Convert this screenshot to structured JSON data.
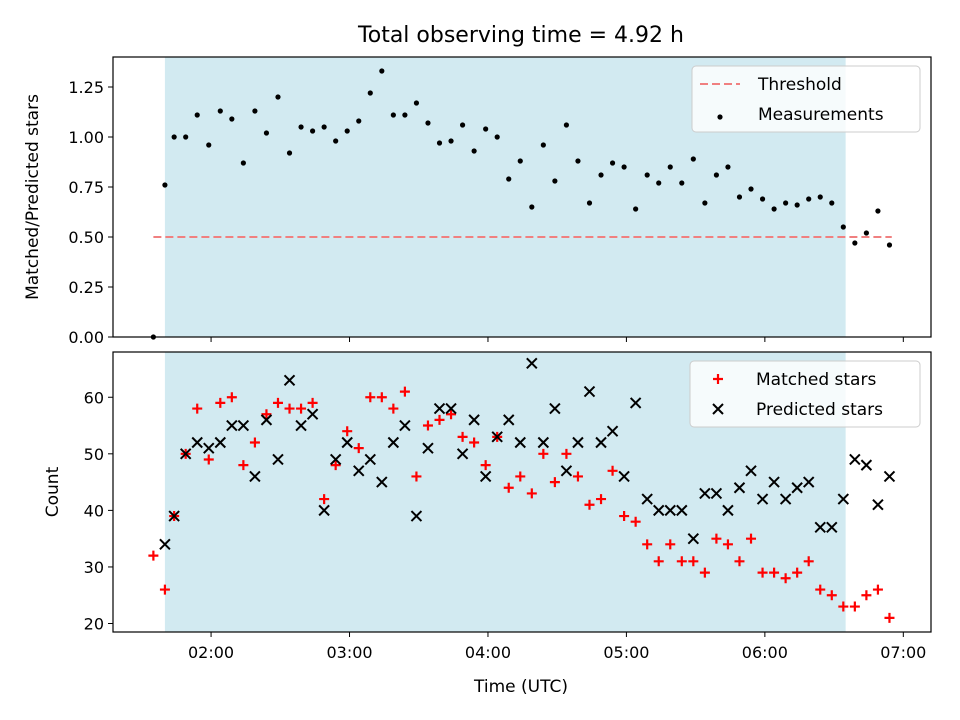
{
  "title": "Total observing time = 4.92 h",
  "chart_data": [
    {
      "type": "scatter",
      "title": "Total observing time = 4.92 h",
      "xlabel": "",
      "ylabel": "Matched/Predicted stars",
      "ylim": [
        0,
        1.4
      ],
      "yticks": [
        "0.00",
        "0.25",
        "0.50",
        "0.75",
        "1.00",
        "1.25"
      ],
      "shaded_span": [
        "01:40",
        "06:35"
      ],
      "shade_color": "#add8e6",
      "threshold": {
        "name": "Threshold",
        "y": 0.5,
        "x_range": [
          "01:35",
          "06:55"
        ],
        "color": "#f08080"
      },
      "legend": {
        "position": "upper right",
        "entries": [
          "Threshold",
          "Measurements"
        ]
      },
      "series": [
        {
          "name": "Measurements",
          "marker": "dot",
          "color": "#000000",
          "points": [
            [
              "01:35",
              0.0
            ],
            [
              "01:40",
              0.76
            ],
            [
              "01:44",
              1.0
            ],
            [
              "01:49",
              1.0
            ],
            [
              "01:54",
              1.11
            ],
            [
              "01:59",
              0.96
            ],
            [
              "02:04",
              1.13
            ],
            [
              "02:09",
              1.09
            ],
            [
              "02:14",
              0.87
            ],
            [
              "02:19",
              1.13
            ],
            [
              "02:24",
              1.02
            ],
            [
              "02:29",
              1.2
            ],
            [
              "02:34",
              0.92
            ],
            [
              "02:39",
              1.05
            ],
            [
              "02:44",
              1.03
            ],
            [
              "02:49",
              1.05
            ],
            [
              "02:54",
              0.98
            ],
            [
              "02:59",
              1.03
            ],
            [
              "03:04",
              1.08
            ],
            [
              "03:09",
              1.22
            ],
            [
              "03:14",
              1.33
            ],
            [
              "03:19",
              1.11
            ],
            [
              "03:24",
              1.11
            ],
            [
              "03:29",
              1.17
            ],
            [
              "03:34",
              1.07
            ],
            [
              "03:39",
              0.97
            ],
            [
              "03:44",
              0.98
            ],
            [
              "03:49",
              1.06
            ],
            [
              "03:54",
              0.93
            ],
            [
              "03:59",
              1.04
            ],
            [
              "04:04",
              1.0
            ],
            [
              "04:09",
              0.79
            ],
            [
              "04:14",
              0.88
            ],
            [
              "04:19",
              0.65
            ],
            [
              "04:24",
              0.96
            ],
            [
              "04:29",
              0.78
            ],
            [
              "04:34",
              1.06
            ],
            [
              "04:39",
              0.88
            ],
            [
              "04:44",
              0.67
            ],
            [
              "04:49",
              0.81
            ],
            [
              "04:54",
              0.87
            ],
            [
              "04:59",
              0.85
            ],
            [
              "05:04",
              0.64
            ],
            [
              "05:09",
              0.81
            ],
            [
              "05:14",
              0.77
            ],
            [
              "05:19",
              0.85
            ],
            [
              "05:24",
              0.77
            ],
            [
              "05:29",
              0.89
            ],
            [
              "05:34",
              0.67
            ],
            [
              "05:39",
              0.81
            ],
            [
              "05:44",
              0.85
            ],
            [
              "05:49",
              0.7
            ],
            [
              "05:54",
              0.74
            ],
            [
              "05:59",
              0.69
            ],
            [
              "06:04",
              0.64
            ],
            [
              "06:09",
              0.67
            ],
            [
              "06:14",
              0.66
            ],
            [
              "06:19",
              0.69
            ],
            [
              "06:24",
              0.7
            ],
            [
              "06:29",
              0.67
            ],
            [
              "06:34",
              0.55
            ],
            [
              "06:39",
              0.47
            ],
            [
              "06:44",
              0.52
            ],
            [
              "06:49",
              0.63
            ],
            [
              "06:54",
              0.46
            ]
          ]
        }
      ]
    },
    {
      "type": "scatter",
      "title": "",
      "xlabel": "Time (UTC)",
      "ylabel": "Count",
      "ylim": [
        18.5,
        68
      ],
      "yticks": [
        "20",
        "30",
        "40",
        "50",
        "60"
      ],
      "xticks": [
        "02:00",
        "03:00",
        "04:00",
        "05:00",
        "06:00",
        "07:00"
      ],
      "shaded_span": [
        "01:40",
        "06:35"
      ],
      "shade_color": "#add8e6",
      "legend": {
        "position": "upper right",
        "entries": [
          "Matched stars",
          "Predicted stars"
        ]
      },
      "series": [
        {
          "name": "Matched stars",
          "marker": "plus",
          "color": "#ff0000",
          "points": [
            [
              "01:35",
              32
            ],
            [
              "01:40",
              26
            ],
            [
              "01:44",
              39
            ],
            [
              "01:49",
              50
            ],
            [
              "01:54",
              58
            ],
            [
              "01:59",
              49
            ],
            [
              "02:04",
              59
            ],
            [
              "02:09",
              60
            ],
            [
              "02:14",
              48
            ],
            [
              "02:19",
              52
            ],
            [
              "02:24",
              57
            ],
            [
              "02:29",
              59
            ],
            [
              "02:34",
              58
            ],
            [
              "02:39",
              58
            ],
            [
              "02:44",
              59
            ],
            [
              "02:49",
              42
            ],
            [
              "02:54",
              48
            ],
            [
              "02:59",
              54
            ],
            [
              "03:04",
              51
            ],
            [
              "03:09",
              60
            ],
            [
              "03:14",
              60
            ],
            [
              "03:19",
              58
            ],
            [
              "03:24",
              61
            ],
            [
              "03:29",
              46
            ],
            [
              "03:34",
              55
            ],
            [
              "03:39",
              56
            ],
            [
              "03:44",
              57
            ],
            [
              "03:49",
              53
            ],
            [
              "03:54",
              52
            ],
            [
              "03:59",
              48
            ],
            [
              "04:04",
              53
            ],
            [
              "04:09",
              44
            ],
            [
              "04:14",
              46
            ],
            [
              "04:19",
              43
            ],
            [
              "04:24",
              50
            ],
            [
              "04:29",
              45
            ],
            [
              "04:34",
              50
            ],
            [
              "04:39",
              46
            ],
            [
              "04:44",
              41
            ],
            [
              "04:49",
              42
            ],
            [
              "04:54",
              47
            ],
            [
              "04:59",
              39
            ],
            [
              "05:04",
              38
            ],
            [
              "05:09",
              34
            ],
            [
              "05:14",
              31
            ],
            [
              "05:19",
              34
            ],
            [
              "05:24",
              31
            ],
            [
              "05:29",
              31
            ],
            [
              "05:34",
              29
            ],
            [
              "05:39",
              35
            ],
            [
              "05:44",
              34
            ],
            [
              "05:49",
              31
            ],
            [
              "05:54",
              35
            ],
            [
              "05:59",
              29
            ],
            [
              "06:04",
              29
            ],
            [
              "06:09",
              28
            ],
            [
              "06:14",
              29
            ],
            [
              "06:19",
              31
            ],
            [
              "06:24",
              26
            ],
            [
              "06:29",
              25
            ],
            [
              "06:34",
              23
            ],
            [
              "06:39",
              23
            ],
            [
              "06:44",
              25
            ],
            [
              "06:49",
              26
            ],
            [
              "06:54",
              21
            ]
          ]
        },
        {
          "name": "Predicted stars",
          "marker": "x",
          "color": "#000000",
          "points": [
            [
              "01:40",
              34
            ],
            [
              "01:44",
              39
            ],
            [
              "01:49",
              50
            ],
            [
              "01:54",
              52
            ],
            [
              "01:59",
              51
            ],
            [
              "02:04",
              52
            ],
            [
              "02:09",
              55
            ],
            [
              "02:14",
              55
            ],
            [
              "02:19",
              46
            ],
            [
              "02:24",
              56
            ],
            [
              "02:29",
              49
            ],
            [
              "02:34",
              63
            ],
            [
              "02:39",
              55
            ],
            [
              "02:44",
              57
            ],
            [
              "02:49",
              40
            ],
            [
              "02:54",
              49
            ],
            [
              "02:59",
              52
            ],
            [
              "03:04",
              47
            ],
            [
              "03:09",
              49
            ],
            [
              "03:14",
              45
            ],
            [
              "03:19",
              52
            ],
            [
              "03:24",
              55
            ],
            [
              "03:29",
              39
            ],
            [
              "03:34",
              51
            ],
            [
              "03:39",
              58
            ],
            [
              "03:44",
              58
            ],
            [
              "03:49",
              50
            ],
            [
              "03:54",
              56
            ],
            [
              "03:59",
              46
            ],
            [
              "04:04",
              53
            ],
            [
              "04:09",
              56
            ],
            [
              "04:14",
              52
            ],
            [
              "04:19",
              66
            ],
            [
              "04:24",
              52
            ],
            [
              "04:29",
              58
            ],
            [
              "04:34",
              47
            ],
            [
              "04:39",
              52
            ],
            [
              "04:44",
              61
            ],
            [
              "04:49",
              52
            ],
            [
              "04:54",
              54
            ],
            [
              "04:59",
              46
            ],
            [
              "05:04",
              59
            ],
            [
              "05:09",
              42
            ],
            [
              "05:14",
              40
            ],
            [
              "05:19",
              40
            ],
            [
              "05:24",
              40
            ],
            [
              "05:29",
              35
            ],
            [
              "05:34",
              43
            ],
            [
              "05:39",
              43
            ],
            [
              "05:44",
              40
            ],
            [
              "05:49",
              44
            ],
            [
              "05:54",
              47
            ],
            [
              "05:59",
              42
            ],
            [
              "06:04",
              45
            ],
            [
              "06:09",
              42
            ],
            [
              "06:14",
              44
            ],
            [
              "06:19",
              45
            ],
            [
              "06:24",
              37
            ],
            [
              "06:29",
              37
            ],
            [
              "06:34",
              42
            ],
            [
              "06:39",
              49
            ],
            [
              "06:44",
              48
            ],
            [
              "06:49",
              41
            ],
            [
              "06:54",
              46
            ]
          ]
        }
      ]
    }
  ]
}
